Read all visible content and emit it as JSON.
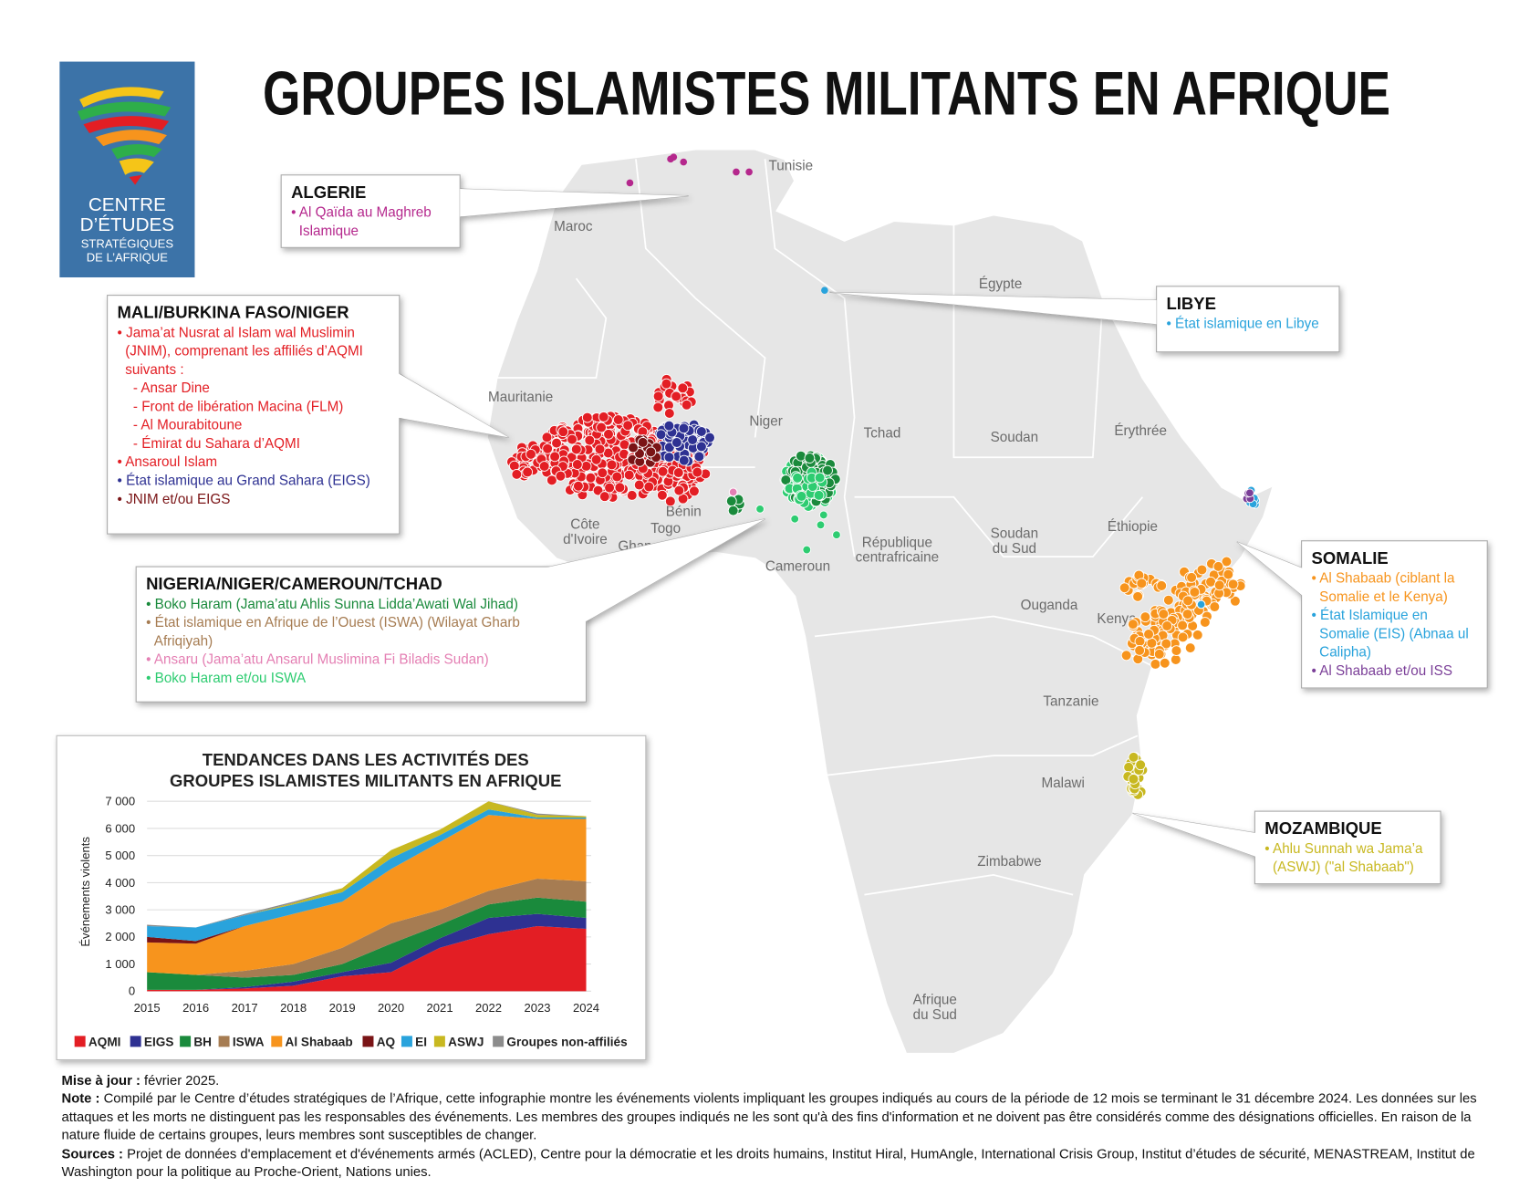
{
  "header": {
    "title": "GROUPES ISLAMISTES MILITANTS EN AFRIQUE"
  },
  "logo": {
    "lines": [
      "CENTRE",
      "D’ÉTUDES",
      "STRATÉGIQUES",
      "DE L’AFRIQUE"
    ]
  },
  "map": {
    "country_labels": [
      {
        "lines": [
          "Tunisie"
        ]
      },
      {
        "lines": [
          "Maroc"
        ]
      },
      {
        "lines": [
          "Égypte"
        ]
      },
      {
        "lines": [
          "Mauritanie"
        ]
      },
      {
        "lines": [
          "Niger"
        ]
      },
      {
        "lines": [
          "Tchad"
        ]
      },
      {
        "lines": [
          "Soudan"
        ]
      },
      {
        "lines": [
          "Érythrée"
        ]
      },
      {
        "lines": [
          "Éthiopie"
        ]
      },
      {
        "lines": [
          "Soudan",
          "du Sud"
        ]
      },
      {
        "lines": [
          "République",
          "centrafricaine"
        ]
      },
      {
        "lines": [
          "Côte",
          "d'Ivoire"
        ]
      },
      {
        "lines": [
          "Ghana"
        ]
      },
      {
        "lines": [
          "Togo"
        ]
      },
      {
        "lines": [
          "Bénin"
        ]
      },
      {
        "lines": [
          "Cameroun"
        ]
      },
      {
        "lines": [
          "Ouganda"
        ]
      },
      {
        "lines": [
          "Kenya"
        ]
      },
      {
        "lines": [
          "Tanzanie"
        ]
      },
      {
        "lines": [
          "Malawi"
        ]
      },
      {
        "lines": [
          "Zimbabwe"
        ]
      },
      {
        "lines": [
          "Afrique",
          "du Sud"
        ]
      }
    ]
  },
  "callouts": [
    {
      "title": "ALGERIE",
      "items": [
        {
          "color": "#b5288d",
          "lines": [
            "• Al Qaïda au Maghreb",
            "Islamique"
          ]
        }
      ]
    },
    {
      "title": "LIBYE",
      "items": [
        {
          "color": "#29a3dc",
          "lines": [
            "• État islamique en Libye"
          ]
        }
      ]
    },
    {
      "title": "MALI/BURKINA FASO/NIGER",
      "items": [
        {
          "color": "#e31e24",
          "lines": [
            "• Jama’at Nusrat al Islam wal Muslimin",
            "(JNIM), comprenant les affiliés d’AQMI",
            "suivants :"
          ]
        },
        {
          "color": "#e31e24",
          "lines": [
            "- Ansar Dine"
          ]
        },
        {
          "color": "#e31e24",
          "lines": [
            "- Front de libération Macina (FLM)"
          ]
        },
        {
          "color": "#e31e24",
          "lines": [
            "- Al Mourabitoune"
          ]
        },
        {
          "color": "#e31e24",
          "lines": [
            "- Émirat du Sahara d’AQMI"
          ]
        },
        {
          "color": "#e31e24",
          "lines": [
            "• Ansaroul Islam"
          ]
        },
        {
          "color": "#2e3192",
          "lines": [
            "• État islamique au Grand Sahara (EIGS)"
          ]
        },
        {
          "color": "#7a1416",
          "lines": [
            "• JNIM et/ou EIGS"
          ]
        }
      ]
    },
    {
      "title": "NIGERIA/NIGER/CAMEROUN/TCHAD",
      "items": [
        {
          "color": "#1a8a3c",
          "lines": [
            "• Boko Haram (Jama’atu Ahlis Sunna Lidda’Awati Wal Jihad)"
          ]
        },
        {
          "color": "#a67c52",
          "lines": [
            "• État islamique en Afrique de l’Ouest (ISWA) (Wilayat Gharb",
            "Afriqiyah)"
          ]
        },
        {
          "color": "#e47fb3",
          "lines": [
            "• Ansaru (Jama’atu Ansarul Muslimina Fi Biladis Sudan)"
          ]
        },
        {
          "color": "#2ecc71",
          "lines": [
            "• Boko Haram et/ou ISWA"
          ]
        }
      ]
    },
    {
      "title": "SOMALIE",
      "items": [
        {
          "color": "#f7941d",
          "lines": [
            "• Al Shabaab (ciblant la",
            "Somalie et le Kenya)"
          ]
        },
        {
          "color": "#29a3dc",
          "lines": [
            "• État Islamique en",
            "Somalie (EIS) (Abnaa ul",
            "Calipha)"
          ]
        },
        {
          "color": "#7b3f98",
          "lines": [
            "• Al Shabaab et/ou ISS"
          ]
        }
      ]
    },
    {
      "title": "MOZAMBIQUE",
      "items": [
        {
          "color": "#c8b820",
          "lines": [
            "• Ahlu Sunnah wa Jama’a",
            "(ASWJ) (\"al Shabaab\")"
          ]
        }
      ]
    }
  ],
  "chart_data": {
    "type": "stacked_area",
    "title": [
      "TENDANCES DANS LES ACTIVITÉS DES",
      "GROUPES ISLAMISTES MILITANTS EN AFRIQUE"
    ],
    "y_label": "Événements violents",
    "x": [
      2015,
      2016,
      2017,
      2018,
      2019,
      2020,
      2021,
      2022,
      2023,
      2024
    ],
    "xlim": [
      2015,
      2024
    ],
    "ylim": [
      0,
      7000
    ],
    "yticks": [
      0,
      {
        "value": 1000,
        "label": "1 000"
      },
      {
        "value": 2000,
        "label": "2 000"
      },
      {
        "value": 3000,
        "label": "3 000"
      },
      {
        "value": 4000,
        "label": "4 000"
      },
      {
        "value": 5000,
        "label": "5 000"
      },
      {
        "value": 6000,
        "label": "6 000"
      },
      {
        "value": 7000,
        "label": "7 000"
      }
    ],
    "grid": true,
    "series": [
      {
        "name": "AQMI",
        "color": "#e31e24",
        "values": [
          50,
          50,
          100,
          200,
          550,
          700,
          1600,
          2100,
          2400,
          2300
        ]
      },
      {
        "name": "EIGS",
        "color": "#2e3192",
        "values": [
          0,
          0,
          50,
          150,
          150,
          350,
          350,
          600,
          450,
          400
        ]
      },
      {
        "name": "BH",
        "color": "#1a8a3c",
        "values": [
          650,
          550,
          350,
          250,
          300,
          700,
          500,
          500,
          600,
          600
        ]
      },
      {
        "name": "ISWA",
        "color": "#a67c52",
        "values": [
          0,
          0,
          250,
          400,
          600,
          750,
          550,
          500,
          700,
          750
        ]
      },
      {
        "name": "Al Shabaab",
        "color": "#f7941d",
        "values": [
          1100,
          1150,
          1650,
          1850,
          1700,
          2000,
          2500,
          2800,
          2200,
          2300
        ]
      },
      {
        "name": "AQ",
        "color": "#7a1416",
        "values": [
          200,
          100,
          0,
          0,
          0,
          0,
          0,
          0,
          0,
          0
        ]
      },
      {
        "name": "EI",
        "color": "#29a3dc",
        "values": [
          400,
          500,
          400,
          350,
          350,
          400,
          250,
          200,
          50,
          50
        ]
      },
      {
        "name": "ASWJ",
        "color": "#c8b820",
        "values": [
          0,
          0,
          0,
          50,
          150,
          300,
          200,
          300,
          100,
          50
        ]
      },
      {
        "name": "Groupes non-affiliés",
        "color": "#8c8c8c",
        "values": [
          50,
          0,
          50,
          50,
          0,
          0,
          0,
          0,
          50,
          0
        ]
      }
    ]
  },
  "footer": {
    "update": {
      "label": "Mise à jour :",
      "text": "février 2025."
    },
    "note": {
      "label": "Note :",
      "text": "Compilé par le Centre d’études stratégiques de l’Afrique, cette infographie montre les événements violents impliquant les groupes indiqués au cours de la période de 12 mois se terminant le 31 décembre 2024. Les données sur les attaques et les morts ne distinguent pas les responsables des événements. Les membres des groupes indiqués ne les sont qu'à des fins d'information et ne doivent pas être considérés comme des désignations officielles. En raison de la nature fluide de certains groupes, leurs membres sont susceptibles de changer."
    },
    "sources": {
      "label": "Sources :",
      "text": "Projet de données d'emplacement et d'événements armés (ACLED), Centre pour la démocratie et les droits humains, Institut Hiral, HumAngle, International Crisis Group, Institut d’études de sécurité, MENASTREAM, Institut de Washington pour la politique au Proche-Orient, Nations unies."
    }
  }
}
